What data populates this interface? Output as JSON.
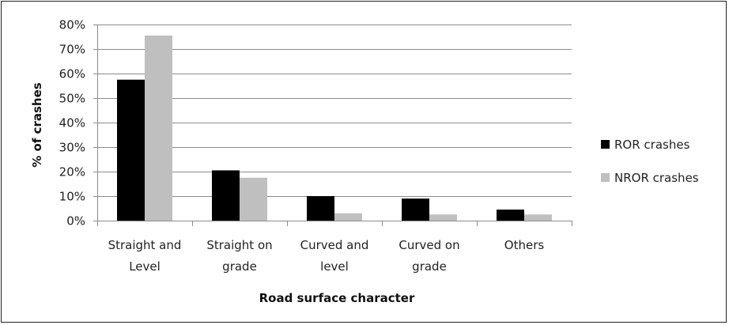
{
  "chart_data": {
    "type": "bar",
    "title": "",
    "xlabel": "Road surface character",
    "ylabel": "% of crashes",
    "ylim": [
      0,
      80
    ],
    "y_ticks": [
      "0%",
      "10%",
      "20%",
      "30%",
      "40%",
      "50%",
      "60%",
      "70%",
      "80%"
    ],
    "y_tick_values": [
      0,
      10,
      20,
      30,
      40,
      50,
      60,
      70,
      80
    ],
    "grid": true,
    "legend_position": "right",
    "categories": [
      [
        "Straight and",
        "Level"
      ],
      [
        "Straight on",
        "grade"
      ],
      [
        "Curved and",
        "level"
      ],
      [
        "Curved on",
        "grade"
      ],
      [
        "Others"
      ]
    ],
    "series": [
      {
        "name": "ROR crashes",
        "color": "#000000",
        "values": [
          57.5,
          20.5,
          10,
          9,
          4.5
        ]
      },
      {
        "name": "NROR crashes",
        "color": "#bfbfbf",
        "values": [
          75.5,
          17.5,
          3,
          2.5,
          2.5
        ]
      }
    ]
  }
}
